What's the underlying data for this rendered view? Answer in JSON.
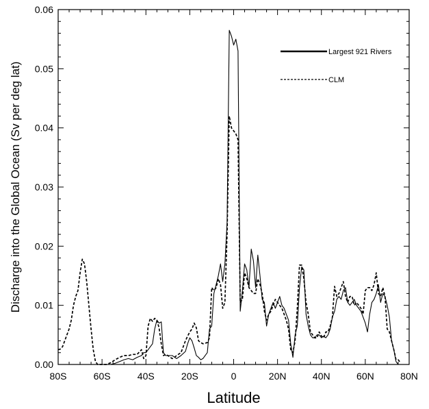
{
  "chart_data": {
    "type": "line",
    "title": "",
    "xlabel": "Latitude",
    "ylabel": "Discharge into the Global Ocean (Sv per deg lat)",
    "xlim": [
      -80,
      80
    ],
    "ylim": [
      0,
      0.06
    ],
    "x_ticks": [
      {
        "value": -80,
        "label": "80S"
      },
      {
        "value": -60,
        "label": "60S"
      },
      {
        "value": -40,
        "label": "40S"
      },
      {
        "value": -20,
        "label": "20S"
      },
      {
        "value": 0,
        "label": "0"
      },
      {
        "value": 20,
        "label": "20N"
      },
      {
        "value": 40,
        "label": "40N"
      },
      {
        "value": 60,
        "label": "60N"
      },
      {
        "value": 80,
        "label": "80N"
      }
    ],
    "y_ticks": [
      {
        "value": 0,
        "label": "0.00"
      },
      {
        "value": 0.01,
        "label": "0.01"
      },
      {
        "value": 0.02,
        "label": "0.02"
      },
      {
        "value": 0.03,
        "label": "0.03"
      },
      {
        "value": 0.04,
        "label": "0.04"
      },
      {
        "value": 0.05,
        "label": "0.05"
      },
      {
        "value": 0.06,
        "label": "0.06"
      }
    ],
    "grid": false,
    "legend_position": "top-right",
    "series": [
      {
        "name": "Largest 921 Rivers",
        "style": "solid",
        "color": "#000000",
        "points": [
          [
            -56,
            0
          ],
          [
            -54,
            0.0002
          ],
          [
            -52,
            0.0005
          ],
          [
            -50,
            0.0008
          ],
          [
            -48,
            0.001
          ],
          [
            -46,
            0.0008
          ],
          [
            -44,
            0.0012
          ],
          [
            -42,
            0.0015
          ],
          [
            -41,
            0.002
          ],
          [
            -40,
            0.002
          ],
          [
            -39,
            0.0025
          ],
          [
            -38,
            0.003
          ],
          [
            -37,
            0.0035
          ],
          [
            -36,
            0.006
          ],
          [
            -35,
            0.0075
          ],
          [
            -34,
            0.007
          ],
          [
            -33,
            0.0072
          ],
          [
            -32,
            0.002
          ],
          [
            -31,
            0.0015
          ],
          [
            -30,
            0.0015
          ],
          [
            -28,
            0.0015
          ],
          [
            -26,
            0.001
          ],
          [
            -24,
            0.0015
          ],
          [
            -22,
            0.0022
          ],
          [
            -21,
            0.0035
          ],
          [
            -20,
            0.0045
          ],
          [
            -19,
            0.004
          ],
          [
            -18,
            0.0028
          ],
          [
            -17,
            0.0015
          ],
          [
            -16,
            0.0012
          ],
          [
            -15,
            0.0008
          ],
          [
            -14,
            0.001
          ],
          [
            -12,
            0.002
          ],
          [
            -11,
            0.006
          ],
          [
            -10,
            0.0065
          ],
          [
            -9,
            0.012
          ],
          [
            -8,
            0.0135
          ],
          [
            -7,
            0.015
          ],
          [
            -6,
            0.017
          ],
          [
            -5,
            0.014
          ],
          [
            -4,
            0.017
          ],
          [
            -3,
            0.024
          ],
          [
            -2,
            0.0565
          ],
          [
            -1,
            0.0555
          ],
          [
            0,
            0.054
          ],
          [
            1,
            0.055
          ],
          [
            2,
            0.053
          ],
          [
            3,
            0.009
          ],
          [
            4,
            0.0125
          ],
          [
            5,
            0.017
          ],
          [
            6,
            0.016
          ],
          [
            7,
            0.013
          ],
          [
            8,
            0.0195
          ],
          [
            9,
            0.0175
          ],
          [
            10,
            0.013
          ],
          [
            11,
            0.0185
          ],
          [
            12,
            0.015
          ],
          [
            13,
            0.011
          ],
          [
            14,
            0.0105
          ],
          [
            15,
            0.0065
          ],
          [
            16,
            0.0085
          ],
          [
            17,
            0.0095
          ],
          [
            18,
            0.0105
          ],
          [
            19,
            0.0095
          ],
          [
            20,
            0.0105
          ],
          [
            21,
            0.0115
          ],
          [
            22,
            0.01
          ],
          [
            23,
            0.0095
          ],
          [
            24,
            0.0085
          ],
          [
            25,
            0.0075
          ],
          [
            26,
            0.0035
          ],
          [
            27,
            0.0012
          ],
          [
            28,
            0.005
          ],
          [
            29,
            0.0065
          ],
          [
            30,
            0.013
          ],
          [
            31,
            0.0165
          ],
          [
            32,
            0.016
          ],
          [
            33,
            0.0085
          ],
          [
            34,
            0.0065
          ],
          [
            35,
            0.005
          ],
          [
            36,
            0.0045
          ],
          [
            37,
            0.0045
          ],
          [
            38,
            0.005
          ],
          [
            39,
            0.005
          ],
          [
            40,
            0.0045
          ],
          [
            41,
            0.0048
          ],
          [
            42,
            0.0045
          ],
          [
            43,
            0.005
          ],
          [
            44,
            0.006
          ],
          [
            45,
            0.008
          ],
          [
            46,
            0.009
          ],
          [
            47,
            0.011
          ],
          [
            48,
            0.0115
          ],
          [
            49,
            0.011
          ],
          [
            50,
            0.0125
          ],
          [
            51,
            0.013
          ],
          [
            52,
            0.0105
          ],
          [
            53,
            0.01
          ],
          [
            54,
            0.0105
          ],
          [
            55,
            0.011
          ],
          [
            56,
            0.01
          ],
          [
            57,
            0.0095
          ],
          [
            58,
            0.009
          ],
          [
            59,
            0.008
          ],
          [
            60,
            0.007
          ],
          [
            61,
            0.0055
          ],
          [
            62,
            0.0085
          ],
          [
            63,
            0.0105
          ],
          [
            64,
            0.011
          ],
          [
            65,
            0.012
          ],
          [
            66,
            0.0135
          ],
          [
            67,
            0.0105
          ],
          [
            68,
            0.012
          ],
          [
            69,
            0.0115
          ],
          [
            70,
            0.01
          ],
          [
            71,
            0.008
          ],
          [
            72,
            0.004
          ],
          [
            73,
            0.0025
          ],
          [
            74,
            0.0005
          ],
          [
            75,
            0
          ]
        ]
      },
      {
        "name": "CLM",
        "style": "dashed",
        "color": "#000000",
        "points": [
          [
            -80,
            0.0025
          ],
          [
            -79,
            0.0026
          ],
          [
            -78,
            0.003
          ],
          [
            -77,
            0.004
          ],
          [
            -76,
            0.005
          ],
          [
            -75,
            0.006
          ],
          [
            -74,
            0.0075
          ],
          [
            -73,
            0.01
          ],
          [
            -72,
            0.0115
          ],
          [
            -71,
            0.0125
          ],
          [
            -70,
            0.0155
          ],
          [
            -69,
            0.0178
          ],
          [
            -68,
            0.017
          ],
          [
            -67,
            0.014
          ],
          [
            -66,
            0.01
          ],
          [
            -65,
            0.006
          ],
          [
            -64,
            0.0025
          ],
          [
            -63,
            0.0005
          ],
          [
            -62,
            0
          ],
          [
            -58,
            0
          ],
          [
            -56,
            0.0003
          ],
          [
            -54,
            0.0008
          ],
          [
            -52,
            0.0012
          ],
          [
            -50,
            0.0015
          ],
          [
            -48,
            0.0015
          ],
          [
            -46,
            0.0017
          ],
          [
            -44,
            0.0017
          ],
          [
            -42,
            0.0025
          ],
          [
            -41,
            0.001
          ],
          [
            -40,
            0.0015
          ],
          [
            -39,
            0.0065
          ],
          [
            -38,
            0.0078
          ],
          [
            -37,
            0.0073
          ],
          [
            -36,
            0.0078
          ],
          [
            -35,
            0.0075
          ],
          [
            -34,
            0.0062
          ],
          [
            -33,
            0.0035
          ],
          [
            -32,
            0.0015
          ],
          [
            -31,
            0.0017
          ],
          [
            -30,
            0.0015
          ],
          [
            -28,
            0.001
          ],
          [
            -27,
            0.0012
          ],
          [
            -26,
            0.0015
          ],
          [
            -24,
            0.002
          ],
          [
            -23,
            0.003
          ],
          [
            -22,
            0.004
          ],
          [
            -21,
            0.0048
          ],
          [
            -20,
            0.0055
          ],
          [
            -19,
            0.006
          ],
          [
            -18,
            0.007
          ],
          [
            -17,
            0.0062
          ],
          [
            -16,
            0.004
          ],
          [
            -15,
            0.0037
          ],
          [
            -14,
            0.0035
          ],
          [
            -12,
            0.0037
          ],
          [
            -11,
            0.0045
          ],
          [
            -10,
            0.013
          ],
          [
            -9,
            0.0125
          ],
          [
            -8,
            0.013
          ],
          [
            -7,
            0.0145
          ],
          [
            -6,
            0.0135
          ],
          [
            -5,
            0.0095
          ],
          [
            -4,
            0.0105
          ],
          [
            -3,
            0.022
          ],
          [
            -2,
            0.042
          ],
          [
            -1,
            0.04
          ],
          [
            0,
            0.0395
          ],
          [
            1,
            0.039
          ],
          [
            2,
            0.038
          ],
          [
            3,
            0.0105
          ],
          [
            4,
            0.011
          ],
          [
            5,
            0.0155
          ],
          [
            6,
            0.0145
          ],
          [
            7,
            0.013
          ],
          [
            8,
            0.0125
          ],
          [
            9,
            0.012
          ],
          [
            10,
            0.012
          ],
          [
            11,
            0.0145
          ],
          [
            12,
            0.0135
          ],
          [
            13,
            0.012
          ],
          [
            14,
            0.009
          ],
          [
            15,
            0.0075
          ],
          [
            16,
            0.0085
          ],
          [
            17,
            0.009
          ],
          [
            18,
            0.01
          ],
          [
            19,
            0.011
          ],
          [
            20,
            0.0105
          ],
          [
            21,
            0.01
          ],
          [
            22,
            0.0095
          ],
          [
            23,
            0.0085
          ],
          [
            24,
            0.0075
          ],
          [
            25,
            0.006
          ],
          [
            26,
            0.0025
          ],
          [
            27,
            0.002
          ],
          [
            28,
            0.004
          ],
          [
            29,
            0.0095
          ],
          [
            30,
            0.0168
          ],
          [
            31,
            0.0168
          ],
          [
            32,
            0.0145
          ],
          [
            33,
            0.0105
          ],
          [
            34,
            0.0085
          ],
          [
            35,
            0.0055
          ],
          [
            36,
            0.005
          ],
          [
            37,
            0.0045
          ],
          [
            38,
            0.0045
          ],
          [
            39,
            0.0055
          ],
          [
            40,
            0.0048
          ],
          [
            41,
            0.0045
          ],
          [
            42,
            0.0055
          ],
          [
            43,
            0.0055
          ],
          [
            44,
            0.0065
          ],
          [
            45,
            0.008
          ],
          [
            46,
            0.0132
          ],
          [
            47,
            0.0115
          ],
          [
            48,
            0.012
          ],
          [
            49,
            0.013
          ],
          [
            50,
            0.014
          ],
          [
            51,
            0.0115
          ],
          [
            52,
            0.0105
          ],
          [
            53,
            0.0115
          ],
          [
            54,
            0.0115
          ],
          [
            55,
            0.01
          ],
          [
            56,
            0.0105
          ],
          [
            57,
            0.01
          ],
          [
            58,
            0.0095
          ],
          [
            59,
            0.0085
          ],
          [
            60,
            0.0125
          ],
          [
            61,
            0.013
          ],
          [
            62,
            0.013
          ],
          [
            63,
            0.0125
          ],
          [
            64,
            0.0135
          ],
          [
            65,
            0.0155
          ],
          [
            66,
            0.012
          ],
          [
            67,
            0.0115
          ],
          [
            68,
            0.013
          ],
          [
            69,
            0.0115
          ],
          [
            70,
            0.006
          ],
          [
            71,
            0.0055
          ],
          [
            72,
            0.004
          ],
          [
            73,
            0.0025
          ],
          [
            74,
            0.0008
          ],
          [
            75,
            0.0008
          ],
          [
            76,
            0.0003
          ]
        ]
      }
    ]
  }
}
